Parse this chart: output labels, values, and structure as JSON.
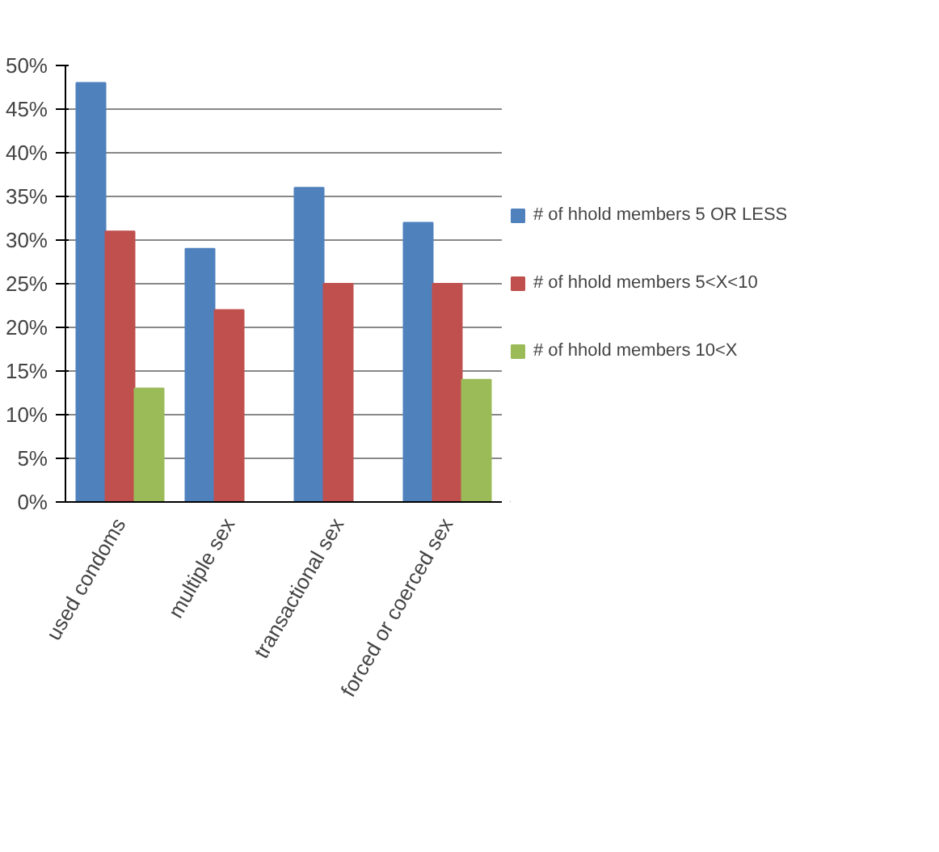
{
  "chart_data": {
    "type": "bar",
    "categories": [
      "used condoms",
      "multiple sex",
      "transactional sex",
      "forced or coerced sex"
    ],
    "series": [
      {
        "name": "# of hhold members 5 OR LESS",
        "color": "#4f81bd",
        "values": [
          48,
          29,
          36,
          32
        ]
      },
      {
        "name": "# of hhold members 5<X<10",
        "color": "#c0504d",
        "values": [
          31,
          22,
          25,
          25
        ]
      },
      {
        "name": "# of hhold members 10<X",
        "color": "#9bbb59",
        "values": [
          13,
          0,
          0,
          14
        ]
      }
    ],
    "ylim": [
      0,
      50
    ],
    "yticks": [
      {
        "value": 0,
        "label": "0%"
      },
      {
        "value": 5,
        "label": "5%"
      },
      {
        "value": 10,
        "label": "10%"
      },
      {
        "value": 15,
        "label": "15%"
      },
      {
        "value": 20,
        "label": "20%"
      },
      {
        "value": 25,
        "label": "25%"
      },
      {
        "value": 30,
        "label": "30%"
      },
      {
        "value": 35,
        "label": "35%"
      },
      {
        "value": 40,
        "label": "40%"
      },
      {
        "value": 45,
        "label": "45%"
      },
      {
        "value": 50,
        "label": "50%"
      }
    ],
    "grid": "y",
    "legend": "right"
  }
}
